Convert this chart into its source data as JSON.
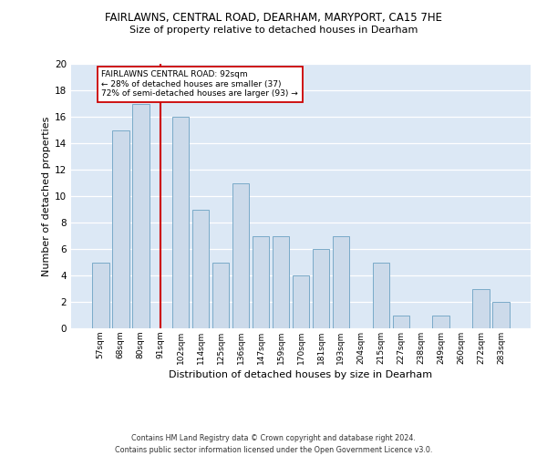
{
  "title1": "FAIRLAWNS, CENTRAL ROAD, DEARHAM, MARYPORT, CA15 7HE",
  "title2": "Size of property relative to detached houses in Dearham",
  "xlabel": "Distribution of detached houses by size in Dearham",
  "ylabel": "Number of detached properties",
  "categories": [
    "57sqm",
    "68sqm",
    "80sqm",
    "91sqm",
    "102sqm",
    "114sqm",
    "125sqm",
    "136sqm",
    "147sqm",
    "159sqm",
    "170sqm",
    "181sqm",
    "193sqm",
    "204sqm",
    "215sqm",
    "227sqm",
    "238sqm",
    "249sqm",
    "260sqm",
    "272sqm",
    "283sqm"
  ],
  "values": [
    5,
    15,
    17,
    0,
    16,
    9,
    5,
    11,
    7,
    7,
    4,
    6,
    7,
    0,
    5,
    1,
    0,
    1,
    0,
    3,
    2
  ],
  "bar_color": "#ccdaea",
  "bar_edge_color": "#7aaac8",
  "vline_x_index": 3,
  "vline_color": "#cc0000",
  "annotation_text": "FAIRLAWNS CENTRAL ROAD: 92sqm\n← 28% of detached houses are smaller (37)\n72% of semi-detached houses are larger (93) →",
  "annotation_box_color": "#cc0000",
  "bg_color": "#dce8f5",
  "footer": "Contains HM Land Registry data © Crown copyright and database right 2024.\nContains public sector information licensed under the Open Government Licence v3.0.",
  "ylim": [
    0,
    20
  ],
  "yticks": [
    0,
    2,
    4,
    6,
    8,
    10,
    12,
    14,
    16,
    18,
    20
  ],
  "grid_color": "#ffffff",
  "title1_fontsize": 8.5,
  "title2_fontsize": 8.0
}
